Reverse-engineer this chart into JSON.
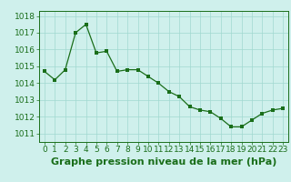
{
  "x": [
    0,
    1,
    2,
    3,
    4,
    5,
    6,
    7,
    8,
    9,
    10,
    11,
    12,
    13,
    14,
    15,
    16,
    17,
    18,
    19,
    20,
    21,
    22,
    23
  ],
  "y": [
    1014.7,
    1014.2,
    1014.8,
    1017.0,
    1017.5,
    1015.8,
    1015.9,
    1014.7,
    1014.8,
    1014.8,
    1014.4,
    1014.0,
    1013.5,
    1013.2,
    1012.6,
    1012.4,
    1012.3,
    1011.9,
    1011.4,
    1011.4,
    1011.8,
    1012.2,
    1012.4,
    1012.5
  ],
  "line_color": "#1a6e1a",
  "marker": "s",
  "marker_size": 2.5,
  "bg_color": "#cff0ec",
  "grid_color": "#a0d8d0",
  "xlabel": "Graphe pression niveau de la mer (hPa)",
  "xlabel_fontsize": 8,
  "xlabel_color": "#1a6e1a",
  "xlabel_bold": true,
  "yticks": [
    1011,
    1012,
    1013,
    1014,
    1015,
    1016,
    1017,
    1018
  ],
  "xticks": [
    0,
    1,
    2,
    3,
    4,
    5,
    6,
    7,
    8,
    9,
    10,
    11,
    12,
    13,
    14,
    15,
    16,
    17,
    18,
    19,
    20,
    21,
    22,
    23
  ],
  "ylim": [
    1010.5,
    1018.3
  ],
  "xlim": [
    -0.5,
    23.5
  ],
  "tick_fontsize": 6.5,
  "tick_color": "#1a6e1a",
  "spine_color": "#1a6e1a"
}
